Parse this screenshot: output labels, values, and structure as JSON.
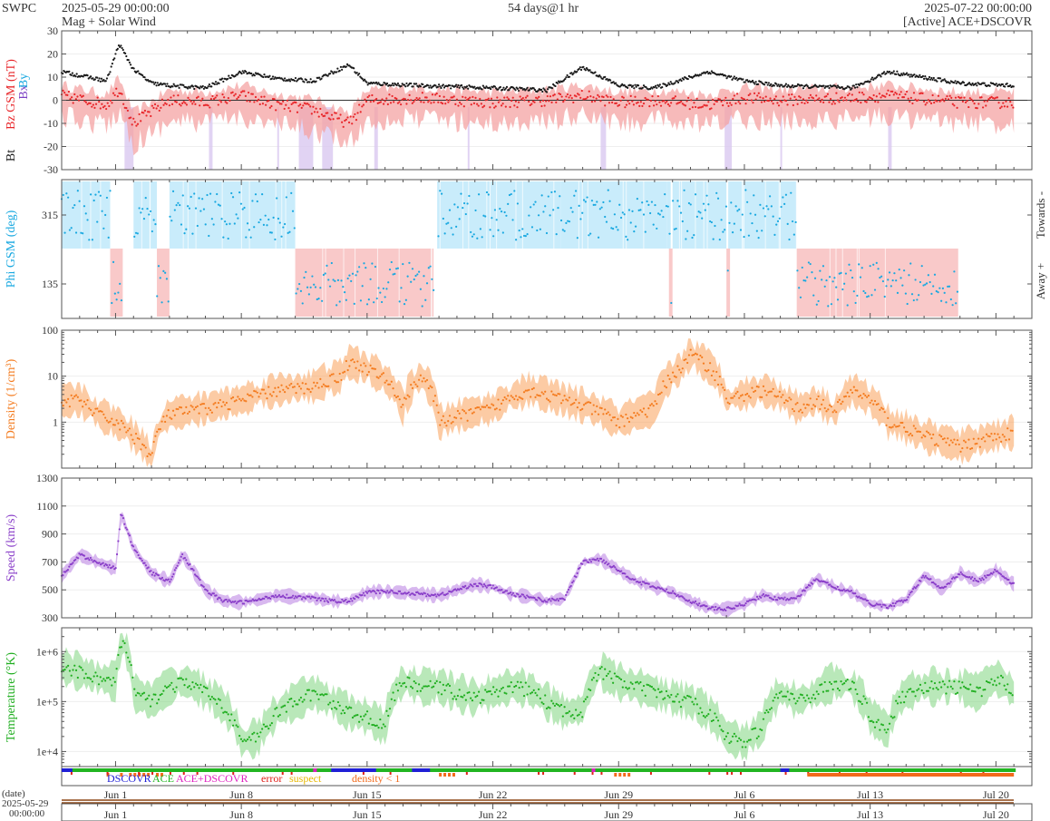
{
  "header": {
    "org": "SWPC",
    "start": "2025-05-29 00:00:00",
    "subtitle": "Mag + Solar Wind",
    "span": "54 days@1 hr",
    "end": "2025-07-22 00:00:00",
    "source": "[Active] ACE+DSCOVR"
  },
  "time_axis": {
    "day0": "2025-05-29",
    "days": 54,
    "tick_labels": [
      "Jun 1",
      "Jun 8",
      "Jun 15",
      "Jun 22",
      "Jun 29",
      "Jul 6",
      "Jul 13",
      "Jul 20"
    ],
    "tick_days": [
      3,
      10,
      17,
      24,
      31,
      38,
      45,
      52
    ],
    "date_label": "(date)",
    "date_start": "2025-05-29",
    "time_start": "00:00:00"
  },
  "legend": {
    "dscovr": "DSCOVR",
    "ace": "ACE",
    "both": "ACE+DSCOVR",
    "error": "error",
    "suspect": "suspect",
    "density": "density < 1"
  },
  "colors": {
    "bt": "#1a1a1a",
    "bz": "#e8262a",
    "bx": "#7b3fc4",
    "by": "#18a8e0",
    "phi": "#18a8e0",
    "towards": "#c9ecfb",
    "away": "#f9c9c9",
    "density": "#f47c20",
    "speed": "#8a3fc9",
    "temperature": "#1fae1f",
    "ace": "#22b522",
    "dscovr": "#1f1fd6",
    "both": "#e020c0"
  },
  "chart_data": [
    {
      "type": "line",
      "name": "mag",
      "ylabel_bt": "Bt",
      "ylabel_bz": "Bz GSM (nT)",
      "ylabel_bx": "Bx",
      "ylabel_by": "By",
      "ylim": [
        -30,
        30
      ],
      "yticks": [
        "30",
        "20",
        "10",
        "0",
        "-10",
        "-20",
        "-30"
      ],
      "x_days": [
        0,
        2.5,
        3.2,
        4,
        5,
        6,
        8,
        10,
        12,
        14,
        16,
        17,
        20,
        24,
        27,
        29,
        31,
        33,
        36,
        38,
        40,
        44,
        46,
        50,
        53
      ],
      "bt": [
        12,
        8,
        24,
        13,
        7,
        6,
        5,
        12,
        9,
        8,
        15,
        7,
        6,
        5,
        4,
        14,
        6,
        5,
        12,
        8,
        6,
        5,
        12,
        7,
        6
      ],
      "bz": [
        2,
        -2,
        5,
        -10,
        -5,
        0,
        -1,
        2,
        -2,
        -4,
        -10,
        0,
        1,
        -1,
        0,
        2,
        -1,
        0,
        -2,
        1,
        0,
        1,
        2,
        -1,
        -1
      ]
    },
    {
      "type": "scatter",
      "name": "phi",
      "ylabel": "Phi GSM (deg)",
      "yticks": [
        "315",
        "135"
      ],
      "towards_label": "Towards -",
      "away_label": "Away +",
      "towards_intervals": [
        [
          0,
          2.7
        ],
        [
          4,
          5.3
        ],
        [
          6,
          13
        ],
        [
          20.9,
          27.8
        ],
        [
          27.8,
          33.7
        ],
        [
          33.7,
          33.9
        ],
        [
          34,
          37
        ],
        [
          37.1,
          40.5
        ],
        [
          40.5,
          40.9
        ]
      ],
      "away_intervals": [
        [
          2.7,
          3.4
        ],
        [
          5.3,
          6
        ],
        [
          13,
          20.7
        ],
        [
          33.8,
          34
        ],
        [
          37,
          37.2
        ],
        [
          40.9,
          49.9
        ]
      ]
    },
    {
      "type": "line",
      "name": "density",
      "ylabel": "Density (1/cm³)",
      "log": true,
      "yticks": [
        "100",
        "10",
        "1"
      ],
      "ylim": [
        0.1,
        100
      ],
      "x_days": [
        0,
        1,
        2,
        3,
        4,
        5,
        6,
        8,
        10,
        12,
        14,
        15.5,
        16,
        17,
        19,
        20,
        21,
        24,
        26,
        28,
        31,
        33,
        34.5,
        35,
        37,
        39,
        41,
        42,
        43,
        44,
        46,
        48,
        50,
        53
      ],
      "values": [
        3,
        3,
        1.5,
        1,
        0.5,
        0.15,
        1.5,
        2,
        3,
        5,
        6,
        10,
        20,
        15,
        2,
        10,
        1,
        2,
        5,
        3,
        1,
        2,
        15,
        30,
        3,
        5,
        2,
        3,
        1.5,
        5,
        1,
        0.5,
        0.3,
        0.6
      ]
    },
    {
      "type": "line",
      "name": "speed",
      "ylabel": "Speed (km/s)",
      "yticks": [
        "1300",
        "1100",
        "900",
        "700",
        "500",
        "300"
      ],
      "ylim": [
        300,
        1300
      ],
      "x_days": [
        0,
        1,
        2,
        3,
        3.3,
        4,
        5,
        6,
        6.7,
        7,
        8,
        9,
        10,
        11,
        12,
        13,
        14,
        15,
        16,
        17,
        18,
        19,
        20,
        21,
        22,
        23,
        24,
        25,
        26,
        27,
        28,
        29,
        30,
        31,
        32,
        33,
        34,
        35,
        36,
        37,
        38,
        39,
        40,
        41,
        42,
        43,
        44,
        45,
        46,
        47,
        48,
        49,
        50,
        51,
        52,
        53
      ],
      "values": [
        600,
        750,
        700,
        650,
        1050,
        800,
        620,
        560,
        750,
        700,
        500,
        420,
        410,
        430,
        460,
        450,
        440,
        420,
        420,
        480,
        490,
        480,
        470,
        460,
        500,
        540,
        520,
        470,
        450,
        420,
        440,
        700,
        720,
        640,
        560,
        520,
        480,
        420,
        370,
        360,
        400,
        460,
        430,
        450,
        580,
        520,
        480,
        400,
        380,
        430,
        600,
        510,
        620,
        560,
        640,
        540
      ]
    },
    {
      "type": "line",
      "name": "temperature",
      "ylabel": "Temperature (°K)",
      "log": true,
      "yticks": [
        "1e+6",
        "1e+5",
        "1e+4"
      ],
      "ylim": [
        5000,
        3000000
      ],
      "x_days": [
        0,
        1,
        2,
        3,
        3.4,
        4,
        5,
        6,
        7,
        8,
        9,
        10,
        11,
        12,
        13,
        14,
        15,
        16,
        17,
        18,
        19,
        20,
        21,
        22,
        23,
        24,
        25,
        26,
        27,
        28,
        29,
        30,
        31,
        32,
        33,
        34,
        35,
        36,
        37,
        38,
        39,
        40,
        41,
        42,
        43,
        44,
        45,
        46,
        47,
        48,
        49,
        50,
        51,
        52,
        53
      ],
      "values": [
        500000,
        400000,
        300000,
        250000,
        1500000,
        150000,
        100000,
        200000,
        250000,
        150000,
        80000,
        15000,
        20000,
        60000,
        100000,
        150000,
        100000,
        60000,
        50000,
        30000,
        250000,
        200000,
        200000,
        150000,
        120000,
        150000,
        200000,
        180000,
        100000,
        60000,
        70000,
        400000,
        250000,
        200000,
        150000,
        120000,
        100000,
        60000,
        20000,
        15000,
        30000,
        150000,
        100000,
        150000,
        250000,
        200000,
        50000,
        25000,
        150000,
        200000,
        200000,
        200000,
        150000,
        300000,
        150000
      ]
    }
  ]
}
